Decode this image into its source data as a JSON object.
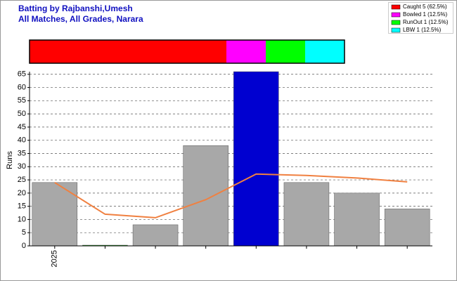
{
  "chart_data": [
    {
      "type": "stacked-bar",
      "title": "Batting by Rajbanshi,Umesh",
      "subtitle": "All Matches, All Grades, Narara",
      "series": [
        {
          "name": "Caught 5 (62.5%)",
          "color": "#ff0000",
          "values": [
            5
          ]
        },
        {
          "name": "Bowled 1 (12.5%)",
          "color": "#ff00ff",
          "values": [
            1
          ]
        },
        {
          "name": "RunOut 1 (12.5%)",
          "color": "#00ff00",
          "values": [
            1
          ]
        },
        {
          "name": "LBW 1 (12.5%)",
          "color": "#00ffff",
          "values": [
            1
          ]
        }
      ]
    },
    {
      "type": "bar",
      "y_label": "Runs",
      "categories": [
        "2025",
        null,
        null,
        null,
        null,
        null,
        null,
        null
      ],
      "values": [
        24,
        0,
        8,
        38,
        66,
        24,
        20,
        14
      ],
      "colors": [
        "#a8a8a8",
        "#00c000",
        "#a8a8a8",
        "#a8a8a8",
        "#0000d0",
        "#a8a8a8",
        "#a8a8a8",
        "#a8a8a8"
      ],
      "line": {
        "color": "#f08040",
        "values": [
          24,
          12,
          10.67,
          17.5,
          27.2,
          26.67,
          25.71,
          24.25
        ]
      },
      "ylim": [
        0,
        66
      ],
      "yticks": [
        0,
        5,
        10,
        15,
        20,
        25,
        30,
        35,
        40,
        45,
        50,
        55,
        60,
        65
      ],
      "grid": true
    }
  ]
}
